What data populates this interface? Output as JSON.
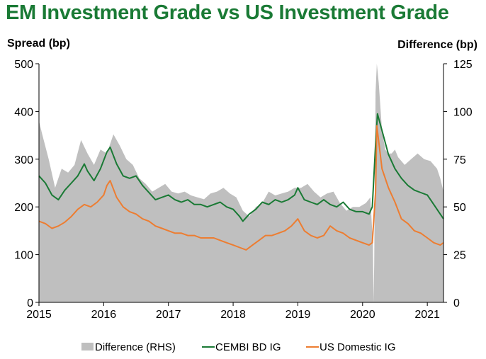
{
  "chart_data": {
    "type": "line",
    "title": "EM Investment Grade vs US Investment Grade",
    "ylabel": "Spread (bp)",
    "y2label": "Difference (bp)",
    "ylim": [
      0,
      500
    ],
    "y2lim": [
      0,
      125
    ],
    "yticks": [
      "0",
      "100",
      "200",
      "300",
      "400",
      "500"
    ],
    "y2ticks": [
      "0",
      "25",
      "50",
      "75",
      "100",
      "125"
    ],
    "xlim": [
      2015.0,
      2021.25
    ],
    "xticks": [
      "2015",
      "2016",
      "2017",
      "2018",
      "2019",
      "2020",
      "2021"
    ],
    "grid": false,
    "legend_position": "bottom",
    "series": [
      {
        "name": "Difference (RHS)",
        "type": "area",
        "axis": "right",
        "color": "#bfbfbf",
        "x": [
          2015.0,
          2015.05,
          2015.15,
          2015.25,
          2015.35,
          2015.45,
          2015.55,
          2015.65,
          2015.75,
          2015.85,
          2015.95,
          2016.05,
          2016.15,
          2016.25,
          2016.35,
          2016.45,
          2016.55,
          2016.65,
          2016.75,
          2016.85,
          2016.95,
          2017.05,
          2017.15,
          2017.25,
          2017.35,
          2017.45,
          2017.55,
          2017.65,
          2017.75,
          2017.85,
          2017.95,
          2018.05,
          2018.15,
          2018.25,
          2018.35,
          2018.45,
          2018.55,
          2018.65,
          2018.75,
          2018.85,
          2018.95,
          2019.05,
          2019.15,
          2019.25,
          2019.35,
          2019.45,
          2019.55,
          2019.65,
          2019.75,
          2019.85,
          2019.95,
          2020.05,
          2020.12,
          2020.16,
          2020.17,
          2020.18,
          2020.2,
          2020.22,
          2020.25,
          2020.3,
          2020.35,
          2020.4,
          2020.45,
          2020.5,
          2020.55,
          2020.65,
          2020.75,
          2020.85,
          2020.95,
          2021.05,
          2021.15,
          2021.2,
          2021.25
        ],
        "values": [
          95,
          88,
          75,
          60,
          70,
          68,
          72,
          85,
          78,
          72,
          80,
          78,
          88,
          82,
          75,
          72,
          65,
          62,
          58,
          60,
          62,
          58,
          57,
          58,
          56,
          55,
          54,
          57,
          58,
          60,
          57,
          55,
          48,
          45,
          50,
          52,
          58,
          56,
          57,
          58,
          60,
          60,
          62,
          58,
          55,
          57,
          58,
          52,
          48,
          50,
          50,
          52,
          55,
          30,
          0,
          20,
          110,
          125,
          115,
          90,
          80,
          78,
          78,
          80,
          76,
          72,
          75,
          78,
          75,
          74,
          70,
          65,
          58
        ]
      },
      {
        "name": "CEMBI BD IG",
        "type": "line",
        "axis": "left",
        "color": "#1a7a35",
        "x": [
          2015.0,
          2015.1,
          2015.2,
          2015.3,
          2015.4,
          2015.5,
          2015.6,
          2015.7,
          2015.75,
          2015.85,
          2015.95,
          2016.05,
          2016.1,
          2016.2,
          2016.3,
          2016.4,
          2016.5,
          2016.6,
          2016.7,
          2016.8,
          2016.9,
          2017.0,
          2017.1,
          2017.2,
          2017.3,
          2017.4,
          2017.5,
          2017.6,
          2017.7,
          2017.8,
          2017.9,
          2018.0,
          2018.1,
          2018.15,
          2018.25,
          2018.35,
          2018.45,
          2018.55,
          2018.65,
          2018.75,
          2018.85,
          2018.95,
          2019.0,
          2019.1,
          2019.2,
          2019.3,
          2019.4,
          2019.5,
          2019.6,
          2019.7,
          2019.8,
          2019.9,
          2020.0,
          2020.1,
          2020.15,
          2020.2,
          2020.23,
          2020.3,
          2020.4,
          2020.5,
          2020.6,
          2020.7,
          2020.8,
          2020.9,
          2021.0,
          2021.1,
          2021.2,
          2021.25
        ],
        "values": [
          265,
          250,
          225,
          215,
          235,
          250,
          265,
          290,
          275,
          255,
          280,
          315,
          325,
          290,
          265,
          260,
          265,
          245,
          230,
          215,
          220,
          225,
          215,
          210,
          215,
          205,
          205,
          200,
          205,
          210,
          200,
          195,
          180,
          170,
          185,
          195,
          210,
          205,
          215,
          210,
          215,
          225,
          240,
          215,
          210,
          205,
          215,
          205,
          200,
          210,
          195,
          190,
          190,
          185,
          200,
          330,
          395,
          360,
          310,
          280,
          260,
          245,
          235,
          230,
          225,
          205,
          185,
          175
        ]
      },
      {
        "name": "US Domestic IG",
        "type": "line",
        "axis": "left",
        "color": "#ed7d31",
        "x": [
          2015.0,
          2015.1,
          2015.2,
          2015.3,
          2015.4,
          2015.5,
          2015.6,
          2015.7,
          2015.8,
          2015.9,
          2016.0,
          2016.05,
          2016.1,
          2016.2,
          2016.3,
          2016.4,
          2016.5,
          2016.6,
          2016.7,
          2016.8,
          2016.9,
          2017.0,
          2017.1,
          2017.2,
          2017.3,
          2017.4,
          2017.5,
          2017.6,
          2017.7,
          2017.8,
          2017.9,
          2018.0,
          2018.1,
          2018.2,
          2018.3,
          2018.4,
          2018.5,
          2018.6,
          2018.7,
          2018.8,
          2018.9,
          2019.0,
          2019.1,
          2019.2,
          2019.3,
          2019.4,
          2019.5,
          2019.6,
          2019.7,
          2019.8,
          2019.9,
          2020.0,
          2020.1,
          2020.15,
          2020.2,
          2020.22,
          2020.3,
          2020.4,
          2020.5,
          2020.6,
          2020.7,
          2020.8,
          2020.9,
          2021.0,
          2021.1,
          2021.2,
          2021.25
        ],
        "values": [
          170,
          165,
          155,
          160,
          168,
          180,
          195,
          205,
          200,
          210,
          225,
          245,
          255,
          220,
          200,
          190,
          185,
          175,
          170,
          160,
          155,
          150,
          145,
          145,
          140,
          140,
          135,
          135,
          135,
          130,
          125,
          120,
          115,
          110,
          120,
          130,
          140,
          140,
          145,
          150,
          160,
          175,
          150,
          140,
          135,
          140,
          160,
          150,
          145,
          135,
          130,
          125,
          120,
          125,
          230,
          370,
          280,
          240,
          210,
          175,
          165,
          150,
          145,
          135,
          125,
          120,
          125
        ]
      }
    ]
  }
}
